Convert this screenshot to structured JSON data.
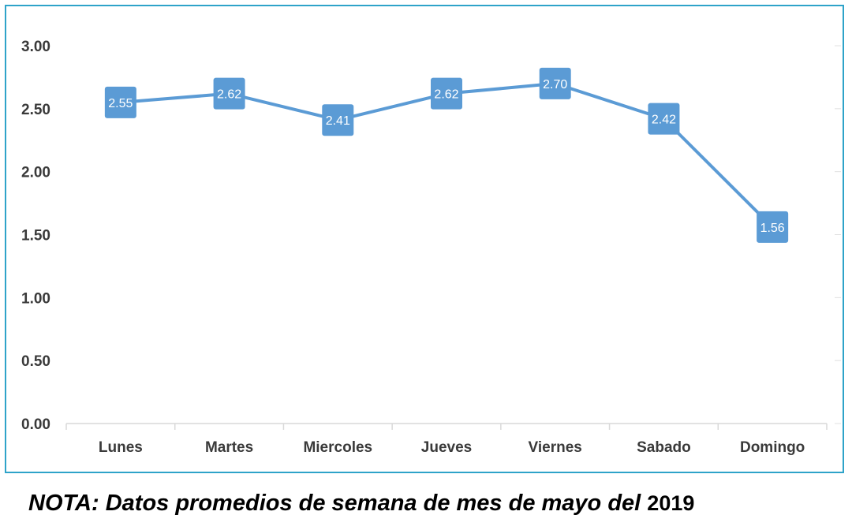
{
  "chart_data": {
    "type": "line",
    "categories": [
      "Lunes",
      "Martes",
      "Miercoles",
      "Jueves",
      "Viernes",
      "Sabado",
      "Domingo"
    ],
    "values": [
      2.55,
      2.62,
      2.41,
      2.62,
      2.7,
      2.42,
      1.56
    ],
    "data_labels": [
      "2.55",
      "2.62",
      "2.41",
      "2.62",
      "2.70",
      "2.42",
      "1.56"
    ],
    "y_ticks": [
      "0.00",
      "0.50",
      "1.00",
      "1.50",
      "2.00",
      "2.50",
      "3.00"
    ],
    "ylim": [
      0,
      3
    ],
    "grid": false,
    "legend": "none",
    "line_color": "#5b9bd5",
    "frame_color": "#2ea3c9"
  },
  "note": {
    "text": "NOTA: Datos promedios de semana de mes de mayo del",
    "year": "2019"
  }
}
